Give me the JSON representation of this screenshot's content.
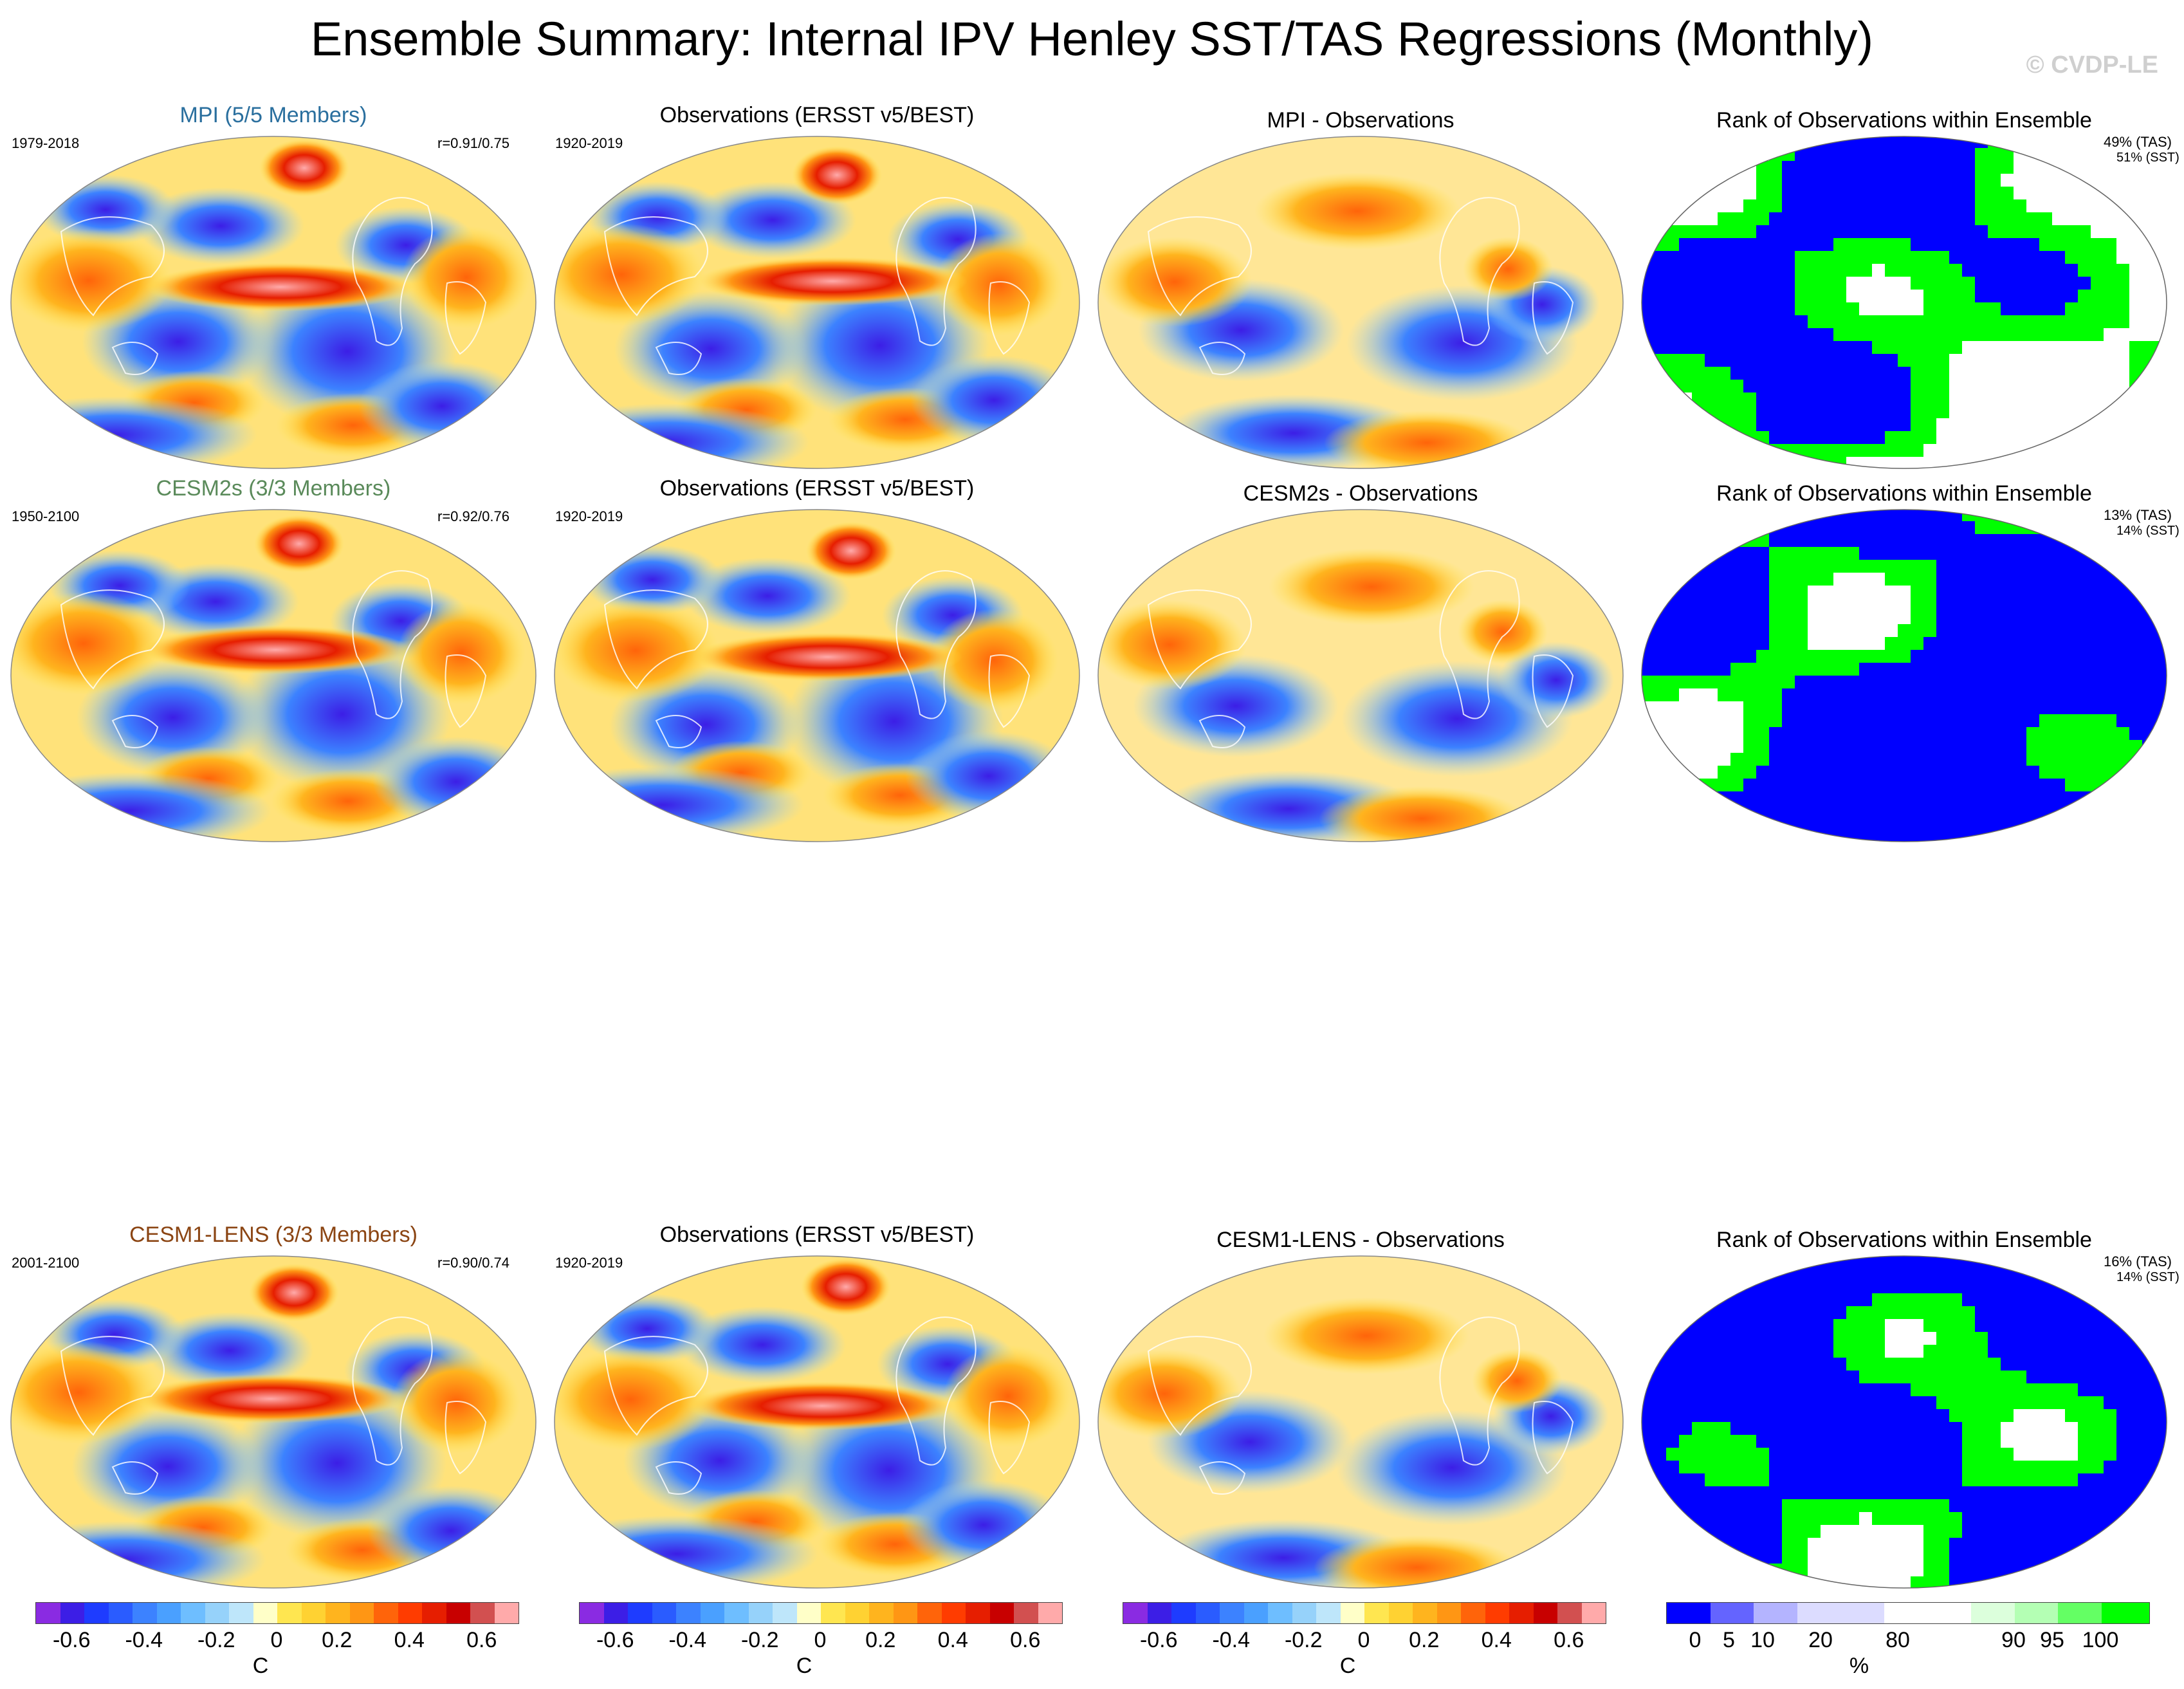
{
  "title": "Ensemble Summary: Internal IPV Henley SST/TAS Regressions (Monthly)",
  "watermark": "© CVDP-LE",
  "colors": {
    "mpi": "#2a6f9e",
    "cesm2s": "#5a8a5a",
    "cesm1": "#8b4513"
  },
  "rows": [
    {
      "model_title": "MPI (5/5 Members)",
      "model_years": "1979-2018",
      "model_r": "r=0.91/0.75",
      "obs_title": "Observations (ERSST v5/BEST)",
      "obs_years": "1920-2019",
      "diff_title": "MPI - Observations",
      "rank_title": "Rank of Observations within Ensemble",
      "rank_tas": "49% (TAS)",
      "rank_sst": "51% (SST)"
    },
    {
      "model_title": "CESM2s (3/3 Members)",
      "model_years": "1950-2100",
      "model_r": "r=0.92/0.76",
      "obs_title": "Observations (ERSST v5/BEST)",
      "obs_years": "1920-2019",
      "diff_title": "CESM2s - Observations",
      "rank_title": "Rank of Observations within Ensemble",
      "rank_tas": "13% (TAS)",
      "rank_sst": "14% (SST)"
    },
    {
      "model_title": "CESM1-LENS (3/3 Members)",
      "model_years": "2001-2100",
      "model_r": "r=0.90/0.74",
      "obs_title": "Observations (ERSST v5/BEST)",
      "obs_years": "1920-2019",
      "diff_title": "CESM1-LENS - Observations",
      "rank_title": "Rank of Observations within Ensemble",
      "rank_tas": "16% (TAS)",
      "rank_sst": "14% (SST)"
    }
  ],
  "colorbar_c": {
    "ticks": [
      "-0.6",
      "-0.4",
      "-0.2",
      "0",
      "0.2",
      "0.4",
      "0.6"
    ],
    "unit": "C",
    "colors": [
      "#8a2be2",
      "#3c1ee6",
      "#1e3cff",
      "#2a5cff",
      "#3c82ff",
      "#4aa0ff",
      "#6ebeff",
      "#96d2fa",
      "#bee6fa",
      "#ffffc8",
      "#ffe650",
      "#ffd232",
      "#ffb41e",
      "#ff9614",
      "#ff640a",
      "#ff3c00",
      "#e61e00",
      "#c80000",
      "#d25050",
      "#ffaaaa"
    ]
  },
  "colorbar_rank": {
    "ticks": [
      "0",
      "5",
      "10",
      "20",
      "80",
      "90",
      "95",
      "100"
    ],
    "unit": "%",
    "colors": [
      "#0000ff",
      "#6464ff",
      "#b4b4ff",
      "#dcdcff",
      "#ffffff",
      "#dcffdc",
      "#b4ffb4",
      "#64ff64",
      "#00ff00"
    ]
  }
}
